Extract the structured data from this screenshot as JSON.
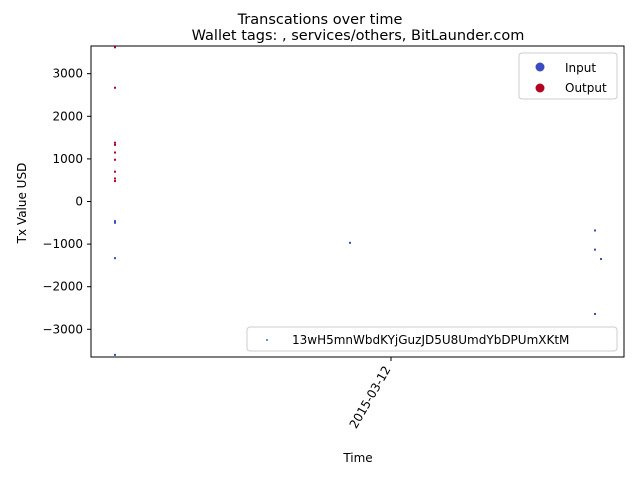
{
  "chart_data": {
    "type": "scatter",
    "suptitle": "Transcations over time",
    "title": "Wallet tags: , services/others, BitLaunder.com",
    "xlabel": "Time",
    "ylabel": "Tx Value USD",
    "x_ticks": [
      "2015-03-12"
    ],
    "y_ticks": [
      -3000,
      -2000,
      -1000,
      0,
      1000,
      2000,
      3000
    ],
    "ylim": [
      -3650,
      3650
    ],
    "grid": false,
    "series": [
      {
        "name": "Output",
        "color": "#b40426",
        "points": [
          {
            "x": "early",
            "y": 3620
          },
          {
            "x": "early",
            "y": 2670
          },
          {
            "x": "early",
            "y": 1380
          },
          {
            "x": "early",
            "y": 1330
          },
          {
            "x": "early",
            "y": 1150
          },
          {
            "x": "early",
            "y": 980
          },
          {
            "x": "early",
            "y": 700
          },
          {
            "x": "early",
            "y": 540
          },
          {
            "x": "early",
            "y": 480
          }
        ]
      },
      {
        "name": "Input",
        "color": "#3b4cc0",
        "points": [
          {
            "x": "early",
            "y": -460
          },
          {
            "x": "early",
            "y": -500
          },
          {
            "x": "early",
            "y": -1330
          },
          {
            "x": "early",
            "y": -3600
          },
          {
            "x": "mid",
            "y": -970
          },
          {
            "x": "late",
            "y": -680
          },
          {
            "x": "late",
            "y": -1130
          },
          {
            "x": "late2",
            "y": -1350
          },
          {
            "x": "late",
            "y": -2640
          }
        ]
      }
    ],
    "legend_classes": {
      "placement": "top-right",
      "entries": [
        {
          "label": "Input",
          "color": "#3b4cc0"
        },
        {
          "label": "Output",
          "color": "#b40426"
        }
      ]
    },
    "legend_address": {
      "placement": "bottom-right",
      "label": "13wH5mnWbdKYjGuzJD5U8UmdYbDPUmXKtM",
      "color": "#1f77b4"
    }
  }
}
